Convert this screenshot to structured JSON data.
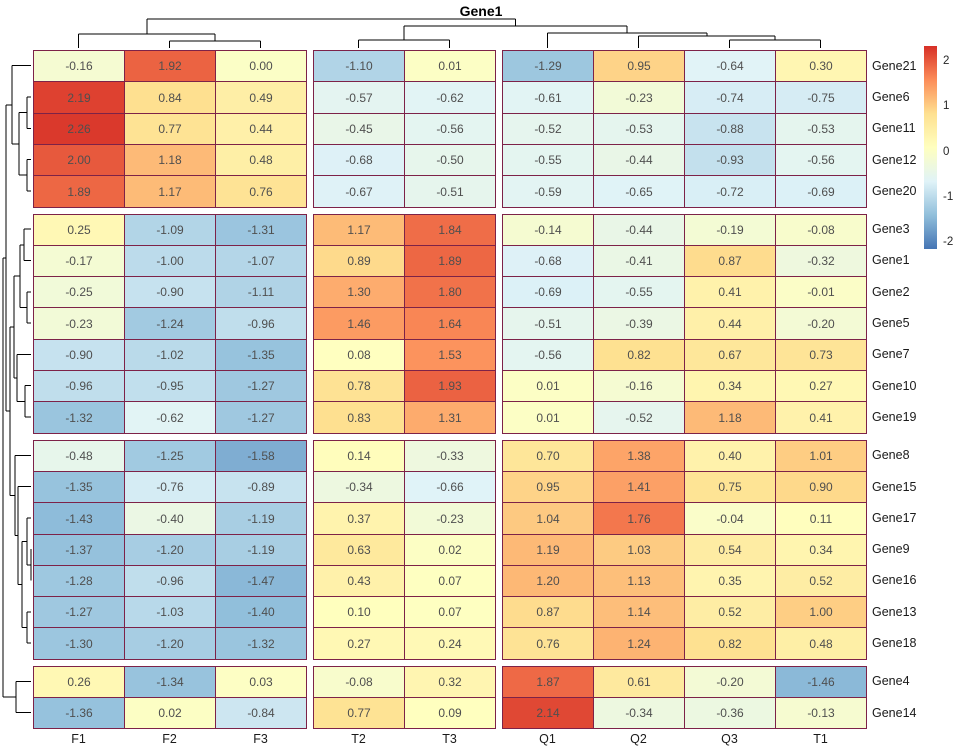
{
  "title": "Gene1",
  "chart_data": {
    "type": "heatmap",
    "title": "Gene1",
    "columns": [
      "F1",
      "F2",
      "F3",
      "T2",
      "T3",
      "Q1",
      "Q2",
      "Q3",
      "T1"
    ],
    "col_groups": [
      3,
      2,
      4
    ],
    "rows": [
      "Gene21",
      "Gene6",
      "Gene11",
      "Gene12",
      "Gene20",
      "Gene3",
      "Gene1",
      "Gene2",
      "Gene5",
      "Gene7",
      "Gene10",
      "Gene19",
      "Gene8",
      "Gene15",
      "Gene17",
      "Gene9",
      "Gene16",
      "Gene13",
      "Gene18",
      "Gene4",
      "Gene14"
    ],
    "row_groups": [
      5,
      7,
      7,
      2
    ],
    "values": [
      [
        -0.16,
        1.92,
        0.0,
        -1.1,
        0.01,
        -1.29,
        0.95,
        -0.64,
        0.3
      ],
      [
        2.19,
        0.84,
        0.49,
        -0.57,
        -0.62,
        -0.61,
        -0.23,
        -0.74,
        -0.75
      ],
      [
        2.26,
        0.77,
        0.44,
        -0.45,
        -0.56,
        -0.52,
        -0.53,
        -0.88,
        -0.53
      ],
      [
        2.0,
        1.18,
        0.48,
        -0.68,
        -0.5,
        -0.55,
        -0.44,
        -0.93,
        -0.56
      ],
      [
        1.89,
        1.17,
        0.76,
        -0.67,
        -0.51,
        -0.59,
        -0.65,
        -0.72,
        -0.69
      ],
      [
        0.25,
        -1.09,
        -1.31,
        1.17,
        1.84,
        -0.14,
        -0.44,
        -0.19,
        -0.08
      ],
      [
        -0.17,
        -1.0,
        -1.07,
        0.89,
        1.89,
        -0.68,
        -0.41,
        0.87,
        -0.32
      ],
      [
        -0.25,
        -0.9,
        -1.11,
        1.3,
        1.8,
        -0.69,
        -0.55,
        0.41,
        -0.01
      ],
      [
        -0.23,
        -1.24,
        -0.96,
        1.46,
        1.64,
        -0.51,
        -0.39,
        0.44,
        -0.2
      ],
      [
        -0.9,
        -1.02,
        -1.35,
        0.08,
        1.53,
        -0.56,
        0.82,
        0.67,
        0.73
      ],
      [
        -0.96,
        -0.95,
        -1.27,
        0.78,
        1.93,
        0.01,
        -0.16,
        0.34,
        0.27
      ],
      [
        -1.32,
        -0.62,
        -1.27,
        0.83,
        1.31,
        0.01,
        -0.52,
        1.18,
        0.41
      ],
      [
        -0.48,
        -1.25,
        -1.58,
        0.14,
        -0.33,
        0.7,
        1.38,
        0.4,
        1.01
      ],
      [
        -1.35,
        -0.76,
        -0.89,
        -0.34,
        -0.66,
        0.95,
        1.41,
        0.75,
        0.9
      ],
      [
        -1.43,
        -0.4,
        -1.19,
        0.37,
        -0.23,
        1.04,
        1.76,
        -0.04,
        0.11
      ],
      [
        -1.37,
        -1.2,
        -1.19,
        0.63,
        0.02,
        1.19,
        1.03,
        0.54,
        0.34
      ],
      [
        -1.28,
        -0.96,
        -1.47,
        0.43,
        0.07,
        1.2,
        1.13,
        0.35,
        0.52
      ],
      [
        -1.27,
        -1.03,
        -1.4,
        0.1,
        0.07,
        0.87,
        1.14,
        0.52,
        1.0
      ],
      [
        -1.3,
        -1.2,
        -1.32,
        0.27,
        0.24,
        0.76,
        1.24,
        0.82,
        0.48
      ],
      [
        0.26,
        -1.34,
        0.03,
        -0.08,
        0.32,
        1.87,
        0.61,
        -0.2,
        -1.46
      ],
      [
        -1.36,
        0.02,
        -0.84,
        0.77,
        0.09,
        2.14,
        -0.34,
        -0.36,
        -0.13
      ]
    ],
    "value_decimals": 2,
    "legend": {
      "ticks": [
        2,
        1,
        0,
        -1,
        -2
      ],
      "domain_top": 2.33,
      "domain_bottom": -2.15
    },
    "palette_low_to_high": [
      "#4575b4",
      "#91bfdb",
      "#e0f3f8",
      "#ffffbf",
      "#fee090",
      "#fc8d59",
      "#d73027"
    ],
    "cell_border_color": "#7d2248",
    "value_text_color": "#4f4f4f",
    "dendrogram_color": "#000000",
    "col_dendrogram": [
      19,
      [
        34,
        "F1",
        [
          41,
          "F2",
          "F3"
        ]
      ],
      [
        26,
        [
          40,
          "T2",
          "T3"
        ],
        [
          33,
          "Q1",
          [
            36,
            "Q2",
            [
              40,
              "Q3",
              "T1"
            ]
          ]
        ]
      ]
    ],
    "row_dendrogram": [
      3,
      [
        6,
        [
          12,
          "Gene21",
          [
            19,
            [
              27,
              "Gene6",
              "Gene11"
            ],
            [
              27,
              "Gene12",
              "Gene20"
            ]
          ]
        ],
        [
          10,
          [
            14,
            [
              20,
              [
                24,
                "Gene3",
                "Gene1"
              ],
              [
                27,
                "Gene2",
                "Gene5"
              ]
            ],
            [
              17,
              "Gene7",
              [
                25,
                "Gene10",
                "Gene19"
              ]
            ]
          ],
          [
            15,
            "Gene8",
            [
              18,
              "Gene15",
              [
                22,
                [
                  27,
                  "Gene17",
                  [
                    31,
                    "Gene9",
                    "Gene16"
                  ]
                ],
                [
                  27,
                  "Gene13",
                  "Gene18"
                ]
              ]
            ]
          ]
        ]
      ],
      [
        16,
        "Gene4",
        "Gene14"
      ]
    ]
  }
}
